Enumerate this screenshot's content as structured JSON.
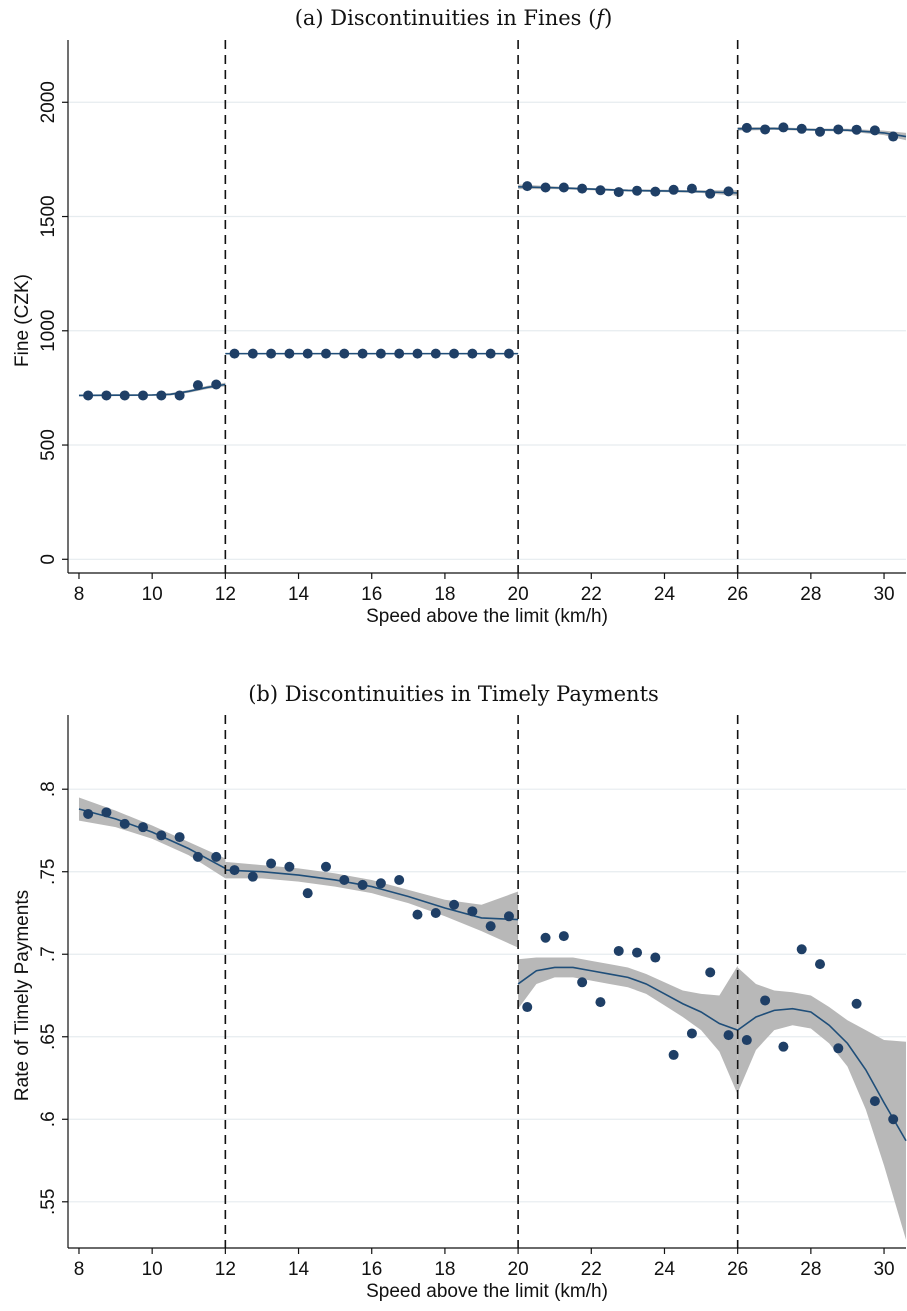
{
  "chart_data": [
    {
      "type": "scatter",
      "title": "(a) Discontinuities in Fines (",
      "title_var": "f",
      "title_end": ")",
      "xlabel": "Speed above the limit (km/h)",
      "ylabel": "Fine (CZK)",
      "xlim": [
        7.7,
        30.6
      ],
      "ylim": [
        -60,
        2150
      ],
      "xticks": [
        8,
        10,
        12,
        14,
        16,
        18,
        20,
        22,
        24,
        26,
        28,
        30
      ],
      "yticks": [
        0,
        500,
        1000,
        1500,
        2000
      ],
      "ytick_labels": [
        "0",
        "500",
        "1000",
        "1500",
        "2000"
      ],
      "cutoffs": [
        12,
        20,
        26
      ],
      "grid": true,
      "marker_color": "#1f3f66",
      "line_color": "#1f4e79",
      "band_color": "#b8b8b8",
      "points": [
        [
          8.25,
          717
        ],
        [
          8.75,
          717
        ],
        [
          9.25,
          717
        ],
        [
          9.75,
          717
        ],
        [
          10.25,
          717
        ],
        [
          10.75,
          717
        ],
        [
          11.25,
          762
        ],
        [
          11.75,
          765
        ],
        [
          12.25,
          900
        ],
        [
          12.75,
          900
        ],
        [
          13.25,
          900
        ],
        [
          13.75,
          900
        ],
        [
          14.25,
          900
        ],
        [
          14.75,
          900
        ],
        [
          15.25,
          900
        ],
        [
          15.75,
          900
        ],
        [
          16.25,
          900
        ],
        [
          16.75,
          900
        ],
        [
          17.25,
          900
        ],
        [
          17.75,
          900
        ],
        [
          18.25,
          900
        ],
        [
          18.75,
          900
        ],
        [
          19.25,
          900
        ],
        [
          19.75,
          900
        ],
        [
          20.25,
          1633
        ],
        [
          20.75,
          1627
        ],
        [
          21.25,
          1627
        ],
        [
          21.75,
          1622
        ],
        [
          22.25,
          1615
        ],
        [
          22.75,
          1607
        ],
        [
          23.25,
          1613
        ],
        [
          23.75,
          1609
        ],
        [
          24.25,
          1617
        ],
        [
          24.75,
          1622
        ],
        [
          25.25,
          1600
        ],
        [
          25.75,
          1610
        ],
        [
          26.25,
          1888
        ],
        [
          26.75,
          1881
        ],
        [
          27.25,
          1890
        ],
        [
          27.75,
          1884
        ],
        [
          28.25,
          1871
        ],
        [
          28.75,
          1881
        ],
        [
          29.25,
          1880
        ],
        [
          29.75,
          1877
        ],
        [
          30.25,
          1850
        ]
      ],
      "fit_segments": [
        {
          "x": [
            8.0,
            9.0,
            10.0,
            10.5,
            11.0,
            11.5,
            12.0
          ],
          "y": [
            717,
            718,
            719,
            722,
            735,
            752,
            765
          ],
          "band": [
            4,
            4,
            4,
            5,
            6,
            7,
            8
          ]
        },
        {
          "x": [
            12.0,
            14.0,
            16.0,
            18.0,
            20.0
          ],
          "y": [
            900,
            900,
            900,
            900,
            900
          ],
          "band": [
            3,
            3,
            3,
            3,
            3
          ]
        },
        {
          "x": [
            20.0,
            21.0,
            22.0,
            23.0,
            24.0,
            25.0,
            26.0
          ],
          "y": [
            1630,
            1626,
            1620,
            1614,
            1612,
            1609,
            1603
          ],
          "band": [
            10,
            6,
            5,
            5,
            5,
            6,
            12
          ]
        },
        {
          "x": [
            26.0,
            27.0,
            28.0,
            29.0,
            30.0,
            30.6
          ],
          "y": [
            1884,
            1885,
            1880,
            1878,
            1866,
            1850
          ],
          "band": [
            8,
            6,
            5,
            6,
            10,
            16
          ]
        }
      ]
    },
    {
      "type": "scatter",
      "title": "(b) Discontinuities in Timely Payments",
      "xlabel": "Speed above the limit (km/h)",
      "ylabel": "Rate of Timely Payments",
      "xlim": [
        7.7,
        30.6
      ],
      "ylim": [
        0.522,
        0.828
      ],
      "xticks": [
        8,
        10,
        12,
        14,
        16,
        18,
        20,
        22,
        24,
        26,
        28,
        30
      ],
      "yticks": [
        0.55,
        0.6,
        0.65,
        0.7,
        0.75,
        0.8
      ],
      "ytick_labels": [
        ".55",
        ".6",
        ".65",
        ".7",
        ".75",
        ".8"
      ],
      "cutoffs": [
        12,
        20,
        26
      ],
      "grid": true,
      "marker_color": "#1f3f66",
      "line_color": "#1f4e79",
      "band_color": "#b8b8b8",
      "points": [
        [
          8.25,
          0.785
        ],
        [
          8.75,
          0.786
        ],
        [
          9.25,
          0.779
        ],
        [
          9.75,
          0.777
        ],
        [
          10.25,
          0.772
        ],
        [
          10.75,
          0.771
        ],
        [
          11.25,
          0.759
        ],
        [
          11.75,
          0.759
        ],
        [
          12.25,
          0.751
        ],
        [
          12.75,
          0.747
        ],
        [
          13.25,
          0.755
        ],
        [
          13.75,
          0.753
        ],
        [
          14.25,
          0.737
        ],
        [
          14.75,
          0.753
        ],
        [
          15.25,
          0.745
        ],
        [
          15.75,
          0.742
        ],
        [
          16.25,
          0.743
        ],
        [
          16.75,
          0.745
        ],
        [
          17.25,
          0.724
        ],
        [
          17.75,
          0.725
        ],
        [
          18.25,
          0.73
        ],
        [
          18.75,
          0.726
        ],
        [
          19.25,
          0.717
        ],
        [
          19.75,
          0.723
        ],
        [
          20.25,
          0.668
        ],
        [
          20.75,
          0.71
        ],
        [
          21.25,
          0.711
        ],
        [
          21.75,
          0.683
        ],
        [
          22.25,
          0.671
        ],
        [
          22.75,
          0.702
        ],
        [
          23.25,
          0.701
        ],
        [
          23.75,
          0.698
        ],
        [
          24.25,
          0.639
        ],
        [
          24.75,
          0.652
        ],
        [
          25.25,
          0.689
        ],
        [
          25.75,
          0.651
        ],
        [
          26.25,
          0.648
        ],
        [
          26.75,
          0.672
        ],
        [
          27.25,
          0.644
        ],
        [
          27.75,
          0.703
        ],
        [
          28.25,
          0.694
        ],
        [
          28.75,
          0.643
        ],
        [
          29.25,
          0.67
        ],
        [
          29.75,
          0.611
        ],
        [
          30.25,
          0.6
        ]
      ],
      "fit_segments": [
        {
          "x": [
            8.0,
            9.0,
            10.0,
            11.0,
            11.5,
            12.0
          ],
          "y": [
            0.788,
            0.782,
            0.774,
            0.764,
            0.758,
            0.752
          ],
          "band": [
            0.007,
            0.005,
            0.004,
            0.004,
            0.005,
            0.006
          ]
        },
        {
          "x": [
            12.0,
            13.0,
            14.0,
            15.0,
            16.0,
            17.0,
            18.0,
            19.0,
            20.0
          ],
          "y": [
            0.751,
            0.75,
            0.748,
            0.745,
            0.741,
            0.735,
            0.728,
            0.722,
            0.721
          ],
          "band": [
            0.005,
            0.004,
            0.004,
            0.004,
            0.004,
            0.004,
            0.005,
            0.008,
            0.017
          ]
        },
        {
          "x": [
            20.0,
            20.5,
            21.0,
            21.5,
            22.0,
            22.5,
            23.0,
            23.5,
            24.0,
            24.5,
            25.0,
            25.5,
            26.0
          ],
          "y": [
            0.682,
            0.69,
            0.692,
            0.692,
            0.69,
            0.688,
            0.686,
            0.682,
            0.676,
            0.67,
            0.665,
            0.658,
            0.654
          ],
          "band": [
            0.015,
            0.008,
            0.006,
            0.006,
            0.006,
            0.006,
            0.006,
            0.006,
            0.007,
            0.008,
            0.011,
            0.017,
            0.039
          ]
        },
        {
          "x": [
            26.0,
            26.5,
            27.0,
            27.5,
            28.0,
            28.5,
            29.0,
            29.5,
            30.0,
            30.6
          ],
          "y": [
            0.654,
            0.662,
            0.666,
            0.667,
            0.665,
            0.657,
            0.646,
            0.63,
            0.61,
            0.587
          ],
          "band": [
            0.038,
            0.02,
            0.012,
            0.01,
            0.01,
            0.011,
            0.014,
            0.024,
            0.038,
            0.06
          ]
        }
      ]
    }
  ]
}
